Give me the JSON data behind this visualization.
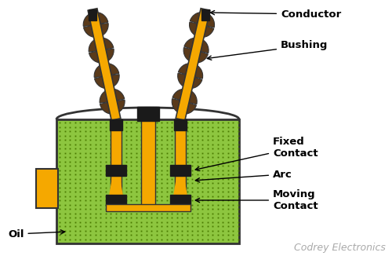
{
  "bg_color": "#ffffff",
  "tank_color": "#8dc63f",
  "tank_dot_color": "#4a7a00",
  "conductor_color": "#f5a800",
  "dark_color": "#1a1a1a",
  "bushing_color": "#5a3a1a",
  "side_box_color": "#f5a800",
  "labels": {
    "conductor": "Conductor",
    "bushing": "Bushing",
    "fixed_contact": "Fixed\nContact",
    "arc": "Arc",
    "moving_contact": "Moving\nContact",
    "oil": "Oil",
    "credit": "Codrey Electronics"
  },
  "font_size_label": 9.5,
  "font_size_credit": 9
}
